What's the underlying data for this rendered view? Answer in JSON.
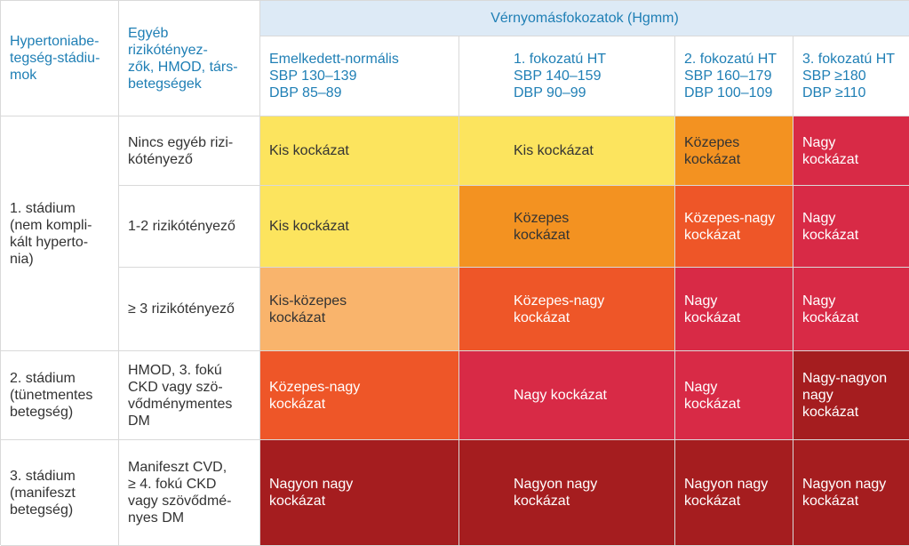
{
  "header": {
    "stage_col": "Hypertoniabe-\ntegség-stádiu-\nmok",
    "factors_col": "Egyéb rizikótényez-\nzők, HMOD, társ-\nbetegségek",
    "bp_group": "Vérnyomásfokozatok (Hgmm)",
    "grades": [
      {
        "label": "Emelkedett-normális\nSBP 130–139\nDBP 85–89"
      },
      {
        "label": "1. fokozatú HT\nSBP 140–159\nDBP 90–99"
      },
      {
        "label": "2. fokozatú HT\nSBP 160–179\nDBP 100–109"
      },
      {
        "label": "3. fokozatú HT\nSBP ≥180\nDBP ≥110"
      }
    ]
  },
  "stages": [
    {
      "label": "1. stádium\n(nem kompli-\nkált hyperto-\nnia)"
    },
    {
      "label": "2. stádium\n(tünetmentes\nbetegség)"
    },
    {
      "label": "3. stádium\n(manifeszt\nbetegség)"
    }
  ],
  "rows": [
    {
      "factor": "Nincs egyéb rizi-\nkótényező",
      "cells": [
        "Kis kockázat",
        "Kis kockázat",
        "Közepes\nkockázat",
        "Nagy\nkockázat"
      ],
      "colors": [
        "#fce45e",
        "#fce45e",
        "#f39221",
        "#d82a46"
      ]
    },
    {
      "factor": "1-2 rizikótényező",
      "cells": [
        "Kis kockázat",
        "Közepes\nkockázat",
        "Közepes-nagy\nkockázat",
        "Nagy\nkockázat"
      ],
      "colors": [
        "#fce45e",
        "#f39221",
        "#ee5628",
        "#d82a46"
      ]
    },
    {
      "factor": "≥ 3 rizikótényező",
      "cells": [
        "Kis-közepes\nkockázat",
        "Közepes-nagy\nkockázat",
        "Nagy\nkockázat",
        "Nagy\nkockázat"
      ],
      "colors": [
        "#f9b46c",
        "#ee5628",
        "#d82a46",
        "#d82a46"
      ]
    },
    {
      "factor": "HMOD, 3. fokú\nCKD vagy szö-\nvődménymentes\nDM",
      "cells": [
        "Közepes-nagy\nkockázat",
        "Nagy kockázat",
        "Nagy\nkockázat",
        "Nagy-nagyon\nnagy\nkockázat"
      ],
      "colors": [
        "#ee5628",
        "#d82a46",
        "#d82a46",
        "#a51d1f"
      ]
    },
    {
      "factor": "Manifeszt CVD,\n≥ 4. fokú CKD\nvagy szövődmé-\nnyes DM",
      "cells": [
        "Nagyon nagy\nkockázat",
        "Nagyon nagy\nkockázat",
        "Nagyon nagy\nkockázat",
        "Nagyon nagy\nkockázat"
      ],
      "colors": [
        "#a51d1f",
        "#a51d1f",
        "#a51d1f",
        "#a51d1f"
      ]
    }
  ]
}
